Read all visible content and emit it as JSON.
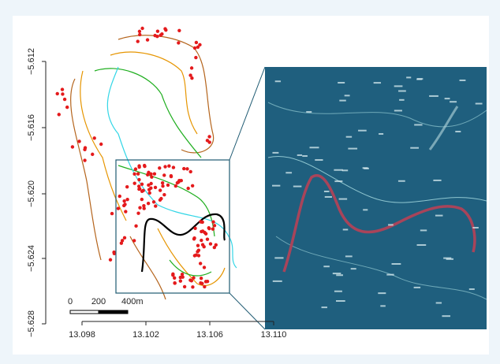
{
  "axes": {
    "x_ticks": [
      "13.098",
      "13.102",
      "13.106",
      "13.110"
    ],
    "y_ticks": [
      "−5.612",
      "−5.616",
      "−5.620",
      "−5.624",
      "−5.628"
    ]
  },
  "scale_bar": {
    "labels": [
      "0",
      "200",
      "400m"
    ]
  }
}
